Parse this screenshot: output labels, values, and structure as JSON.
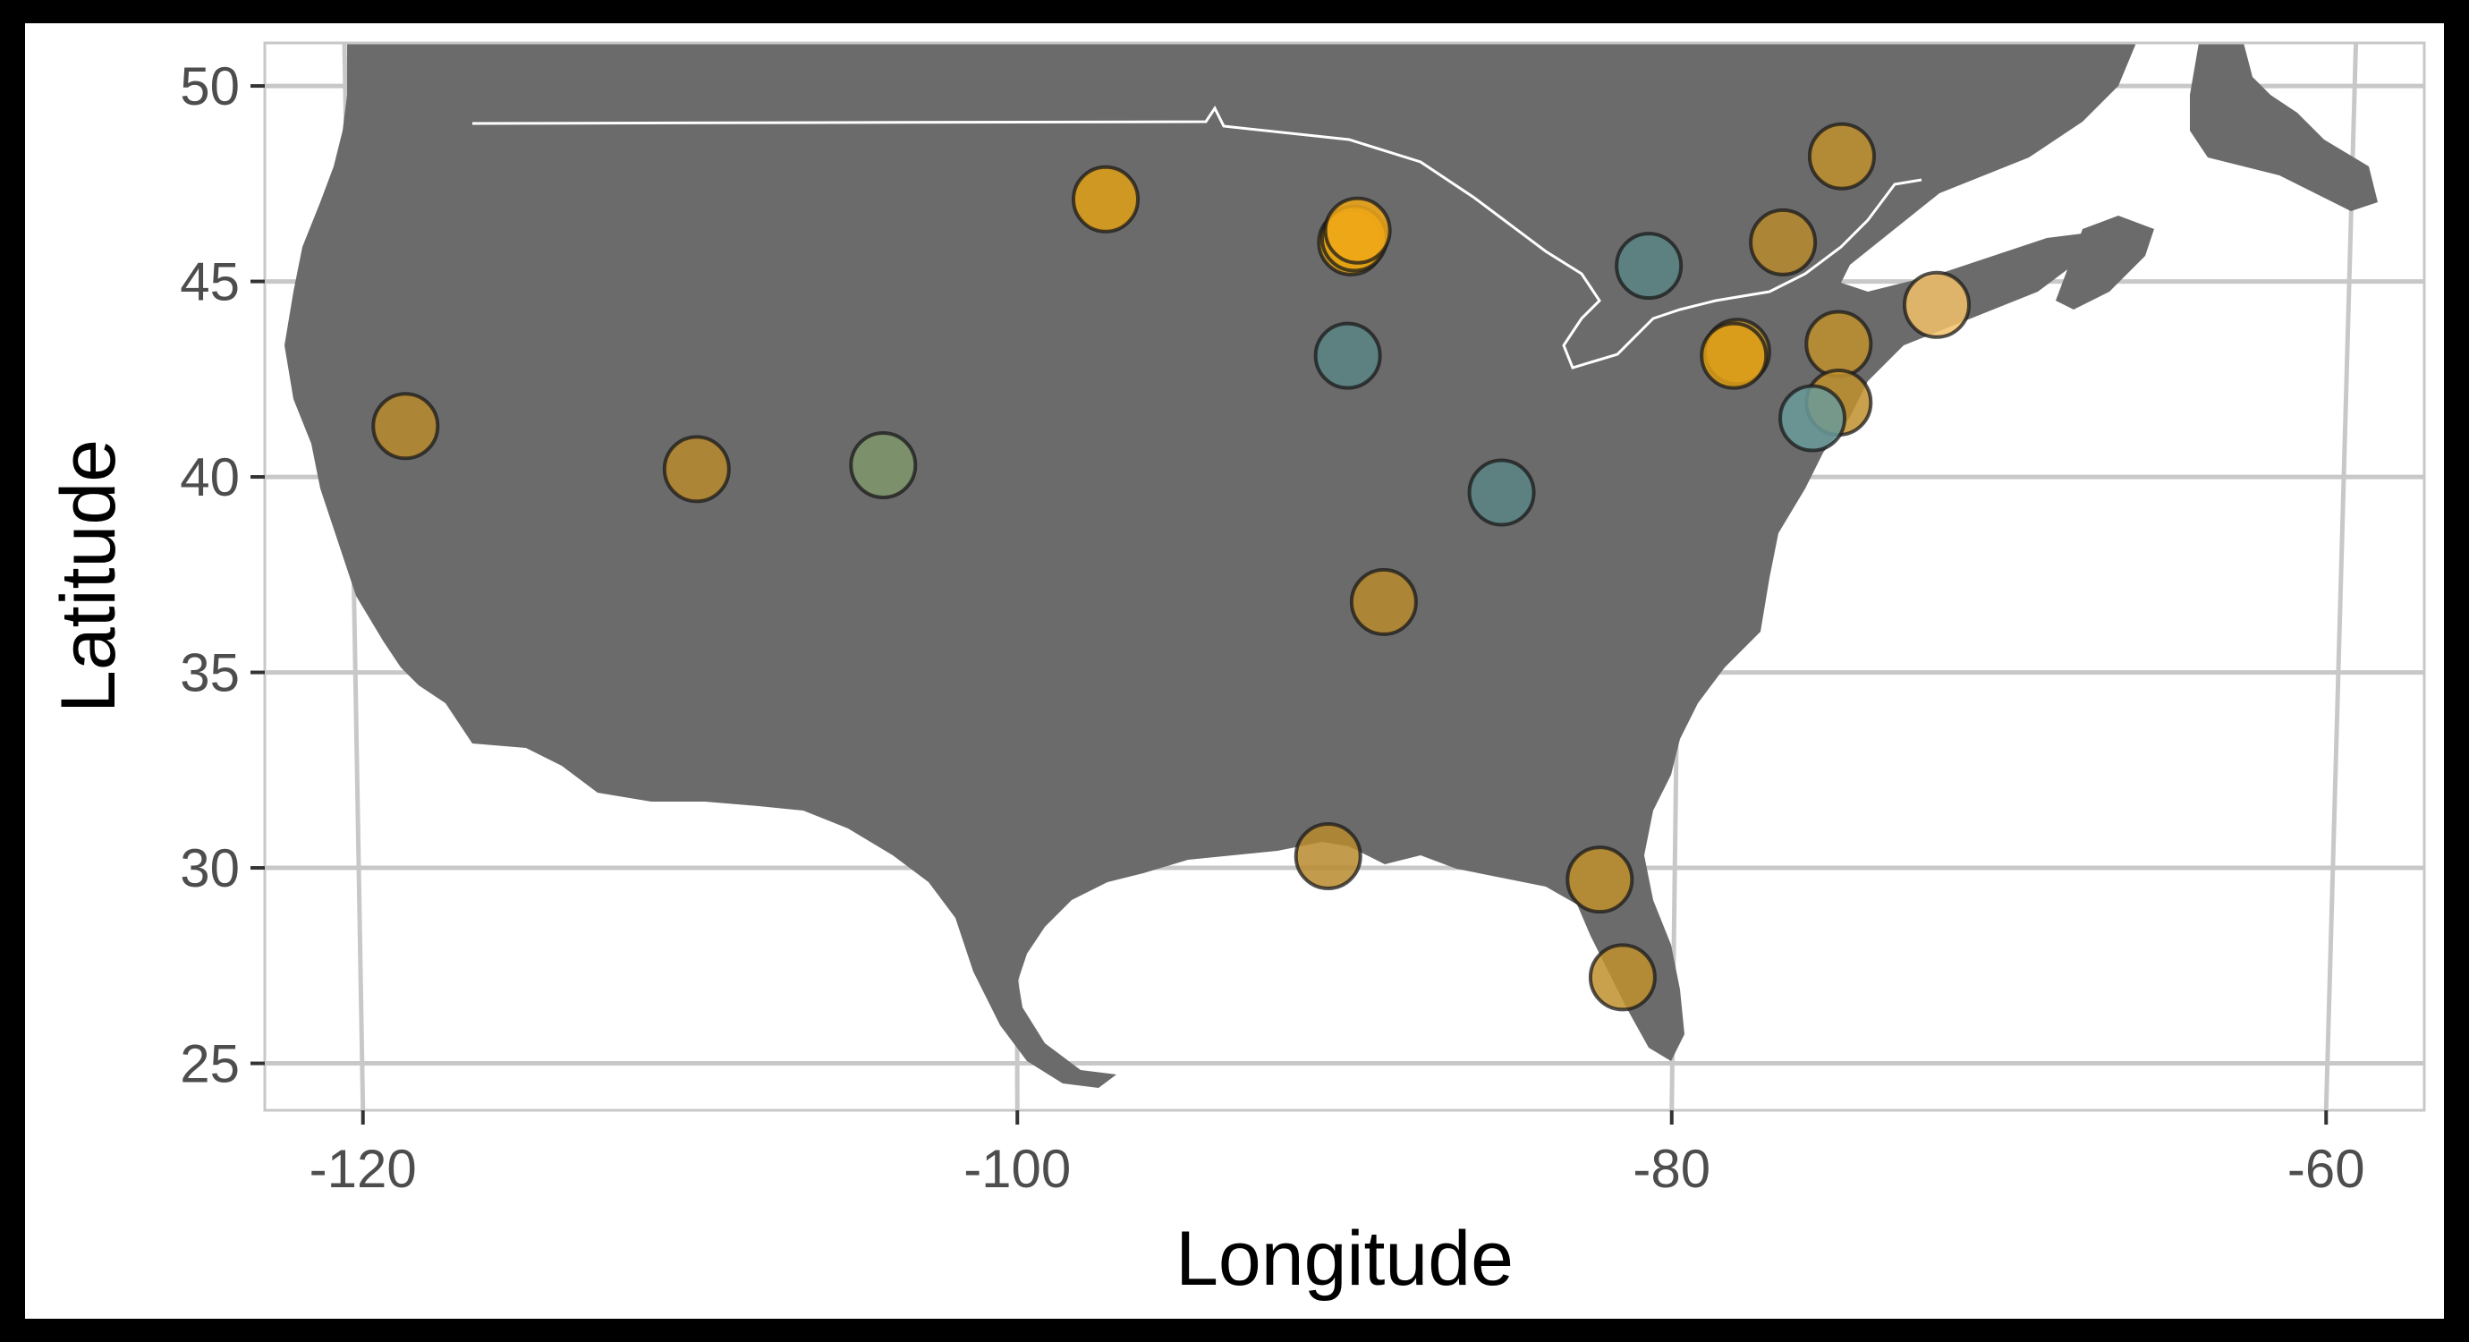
{
  "chart_data": {
    "type": "scatter",
    "title": "",
    "xlabel": "Longitude",
    "ylabel": "Latitude",
    "xlim": [
      -123,
      -57
    ],
    "ylim": [
      23.8,
      51.1
    ],
    "xticks": [
      -120,
      -100,
      -80,
      -60
    ],
    "yticks": [
      25,
      30,
      35,
      40,
      45,
      50
    ],
    "xtick_labels": [
      "-120",
      "-100",
      "-80",
      "-60"
    ],
    "ytick_labels": [
      "25",
      "30",
      "35",
      "40",
      "45",
      "50"
    ],
    "grid": true,
    "legend": "none",
    "background_map": "North America (USA / Canada) land mass",
    "colors": {
      "land": "#6b6b6b",
      "grid": "#c8c8c8",
      "border": "#ffffff",
      "point_edge": "#1a1a1a"
    },
    "points": [
      {
        "x": -118.7,
        "y": 41.3,
        "color": "#b88a2e"
      },
      {
        "x": -109.8,
        "y": 40.2,
        "color": "#b88a2e"
      },
      {
        "x": -104.1,
        "y": 40.3,
        "color": "#7f966b"
      },
      {
        "x": -97.3,
        "y": 47.1,
        "color": "#e0a016"
      },
      {
        "x": -89.8,
        "y": 46.0,
        "color": "#d9a014"
      },
      {
        "x": -89.7,
        "y": 46.1,
        "color": "#e8a312"
      },
      {
        "x": -89.6,
        "y": 46.3,
        "color": "#f0a818"
      },
      {
        "x": -89.9,
        "y": 43.1,
        "color": "#5a8585"
      },
      {
        "x": -88.8,
        "y": 36.8,
        "color": "#b88a2e"
      },
      {
        "x": -90.5,
        "y": 30.3,
        "color": "#b88a2e"
      },
      {
        "x": -85.2,
        "y": 39.6,
        "color": "#5a8585"
      },
      {
        "x": -80.7,
        "y": 45.4,
        "color": "#5a8585"
      },
      {
        "x": -82.2,
        "y": 29.7,
        "color": "#c0902e"
      },
      {
        "x": -81.5,
        "y": 27.2,
        "color": "#c0902e"
      },
      {
        "x": -78.0,
        "y": 43.2,
        "color": "#c0902e"
      },
      {
        "x": -78.1,
        "y": 43.1,
        "color": "#e0a016"
      },
      {
        "x": -76.6,
        "y": 46.0,
        "color": "#b88a2e"
      },
      {
        "x": -74.8,
        "y": 48.2,
        "color": "#c0902e"
      },
      {
        "x": -74.9,
        "y": 43.4,
        "color": "#c0902e"
      },
      {
        "x": -74.9,
        "y": 41.9,
        "color": "#c0902e"
      },
      {
        "x": -75.7,
        "y": 41.5,
        "color": "#6a9a9a"
      },
      {
        "x": -71.9,
        "y": 44.4,
        "color": "#f2c06a"
      }
    ]
  }
}
